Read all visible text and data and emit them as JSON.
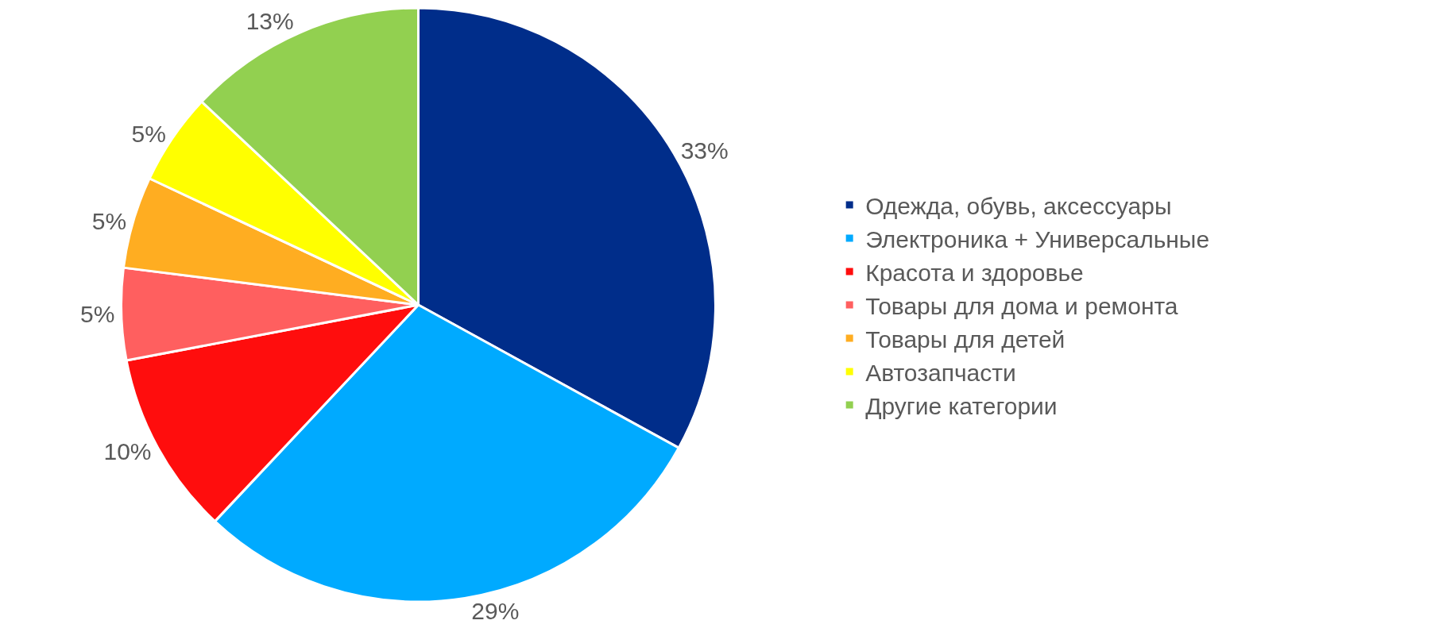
{
  "chart_data": {
    "type": "pie",
    "categories": [
      "Одежда, обувь, аксессуары",
      "Электроника + Универсальные",
      "Красота и здоровье",
      "Товары для дома и ремонта",
      "Товары для детей",
      "Автозапчасти",
      "Другие категории"
    ],
    "values": [
      33,
      29,
      10,
      5,
      5,
      5,
      13
    ],
    "value_labels": [
      "33%",
      "29%",
      "10%",
      "5%",
      "5%",
      "5%",
      "13%"
    ],
    "colors": [
      "#002d8a",
      "#00aaff",
      "#ff0d0d",
      "#ff5f5f",
      "#ffad21",
      "#ffff00",
      "#92d050"
    ],
    "legend": "right"
  }
}
